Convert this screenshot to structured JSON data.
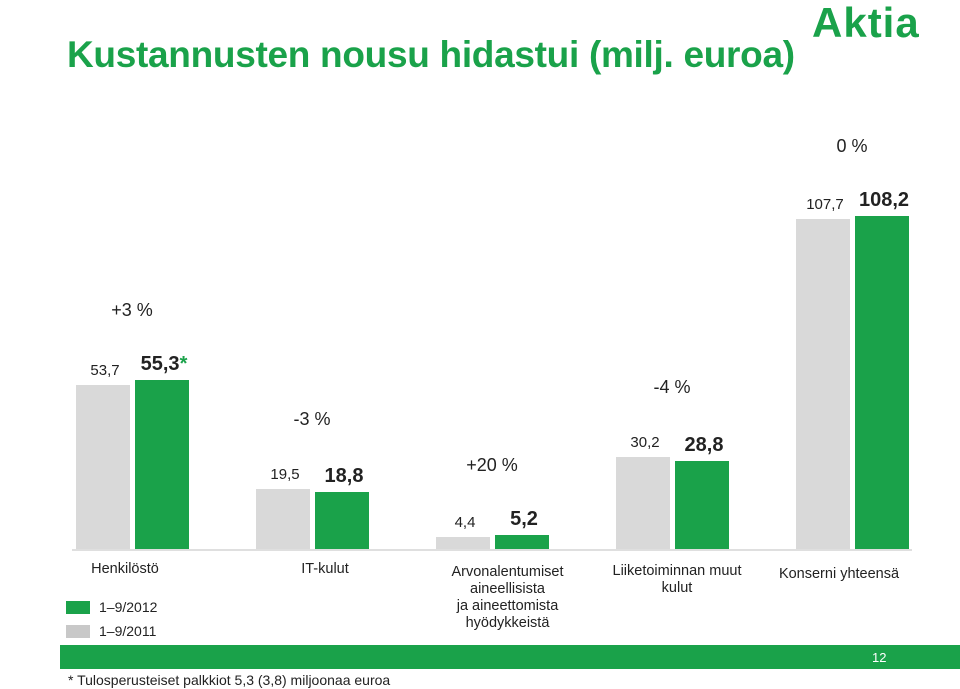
{
  "title": "Kustannusten nousu hidastui (milj. euroa)",
  "logo": "Aktia",
  "colors": {
    "current": "#1aa24a",
    "previous": "#d9d9d9",
    "text": "#222222"
  },
  "legend": [
    {
      "label": "1–9/2012",
      "color": "#1aa24a"
    },
    {
      "label": "1–9/2011",
      "color": "#c8c8c8"
    }
  ],
  "chart_data": {
    "type": "bar",
    "categories": [
      "Henkilöstö",
      "IT-kulut",
      "Arvonalentumiset aineellisista ja aineettomista hyödykkeistä",
      "Liiketoiminnan muut kulut",
      "Konserni yhteensä"
    ],
    "series": [
      {
        "name": "1–9/2011",
        "values": [
          53.7,
          19.5,
          4.4,
          30.2,
          107.7
        ]
      },
      {
        "name": "1–9/2012",
        "values": [
          55.3,
          18.8,
          5.2,
          28.8,
          108.2
        ]
      }
    ],
    "value_labels_2011": [
      "53,7",
      "19,5",
      "4,4",
      "30,2",
      "107,7"
    ],
    "value_labels_2012": [
      "55,3",
      "18,8",
      "5,2",
      "28,8",
      "108,2"
    ],
    "change_labels": [
      "+3 %",
      "-3 %",
      "+20 %",
      "-4 %",
      "0 %"
    ],
    "annotation_marker": "*",
    "annotated_category": 0
  },
  "category_lines": [
    [
      "Henkilöstö"
    ],
    [
      "IT-kulut"
    ],
    [
      "Arvonalentumiset",
      "aineellisista",
      "ja aineettomista",
      "hyödykkeistä"
    ],
    [
      "Liiketoiminnan muut",
      "kulut"
    ],
    [
      "Konserni yhteensä"
    ]
  ],
  "page_number": "12",
  "footnote": "*  Tulosperusteiset palkkiot 5,3 (3,8) miljoonaa euroa"
}
